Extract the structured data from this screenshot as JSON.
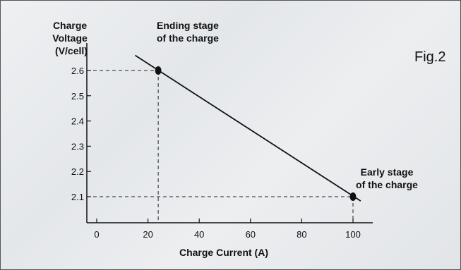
{
  "figure_label": "Fig.2",
  "chart_data": {
    "type": "line",
    "xlabel": "Charge Current (A)",
    "ylabel": [
      "Charge",
      "Voltage",
      "(V/cell)"
    ],
    "xlim": [
      0,
      105
    ],
    "ylim": [
      1.97,
      2.72
    ],
    "x_ticks": [
      0,
      20,
      40,
      60,
      80,
      100
    ],
    "y_ticks": [
      2.1,
      2.2,
      2.3,
      2.4,
      2.5,
      2.6
    ],
    "x_tick_labels": [
      "0",
      "20",
      "40",
      "60",
      "80",
      "100"
    ],
    "y_tick_labels": [
      "2.1",
      "2.2",
      "2.3",
      "2.4",
      "2.5",
      "2.6"
    ],
    "line": {
      "x": [
        15,
        103
      ],
      "y": [
        2.66,
        2.083
      ]
    },
    "points": [
      {
        "x": 24,
        "y": 2.6,
        "label": [
          "Ending stage",
          "of the charge"
        ]
      },
      {
        "x": 100,
        "y": 2.1,
        "label": [
          "Early stage",
          "of the charge"
        ]
      }
    ],
    "line_color": "#111111"
  }
}
